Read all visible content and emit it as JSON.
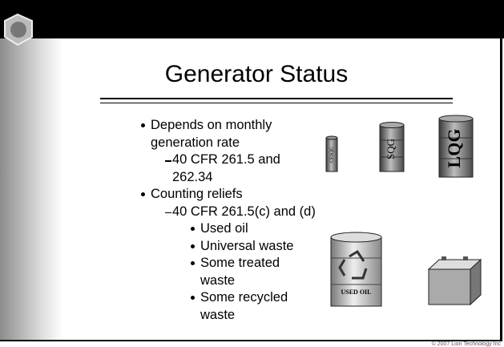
{
  "slide": {
    "title": "Generator Status",
    "bullets": [
      {
        "text": "Depends on monthly generation rate",
        "sub": [
          {
            "text": "40 CFR 261.5 and 262.34"
          }
        ]
      },
      {
        "text": "Counting reliefs",
        "sub": [
          {
            "text": "40 CFR 261.5(c) and (d)",
            "sub": [
              {
                "text": "Used oil"
              },
              {
                "text": "Universal waste"
              },
              {
                "text": "Some treated waste"
              },
              {
                "text": "Some recycled waste"
              }
            ]
          }
        ]
      }
    ],
    "drums": {
      "small": "CESQG",
      "medium": "SQG",
      "large": "LQG",
      "used_oil": "USED OIL"
    },
    "footer": "© 2007 Lion Technology Inc"
  }
}
